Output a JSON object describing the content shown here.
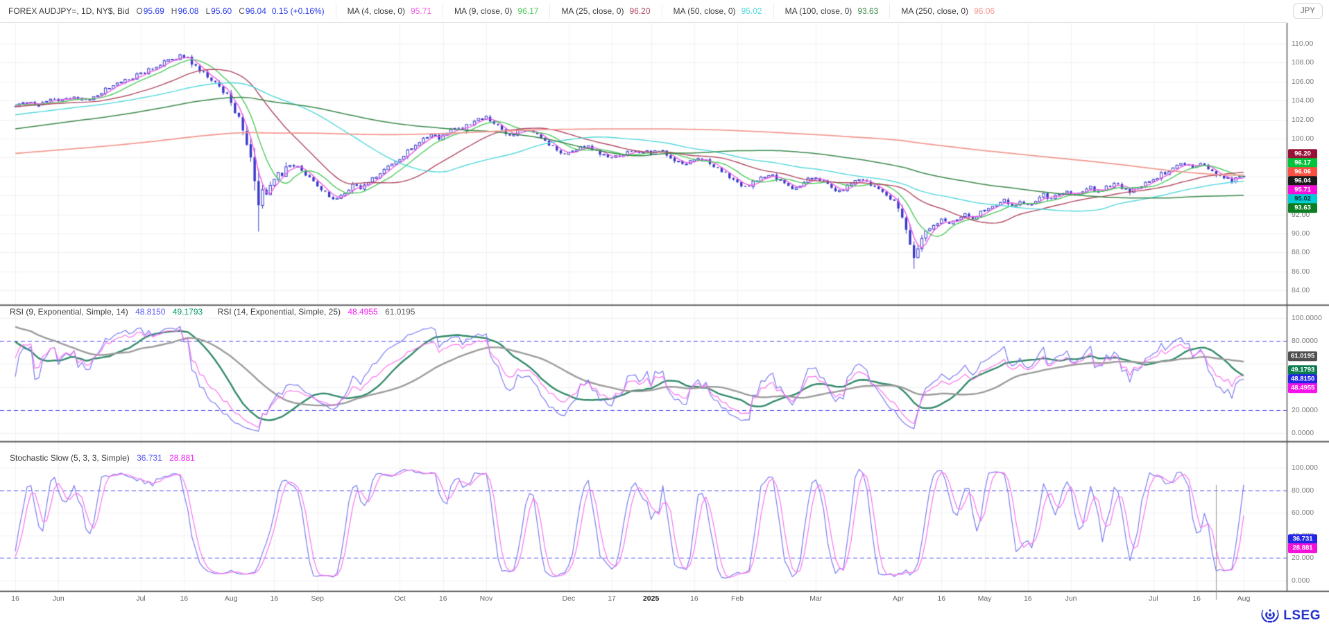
{
  "colors": {
    "value_blue": "#2b3cec",
    "text_dark": "#3c3c3c",
    "candle": "#3838cc",
    "grid_h": "#efefef",
    "grid_v": "#f2f2f2",
    "separator": "#555555",
    "dashed_level": "#4b4bf0",
    "axis_text": "#7b7b7b",
    "logo_blue": "#2531cc"
  },
  "header": {
    "symbol_info": "FOREX AUDJPY=, 1D, NY$, Bid",
    "ohlc": {
      "o_label": "O",
      "o": "95.69",
      "h_label": "H",
      "h": "96.08",
      "l_label": "L",
      "l": "95.60",
      "c_label": "C",
      "c": "96.04",
      "change": "0.15 (+0.16%)"
    },
    "currency_button": "JPY"
  },
  "price_panel": {
    "y_ticks": [
      {
        "text": "110.00",
        "value": 110
      },
      {
        "text": "108.00",
        "value": 108
      },
      {
        "text": "106.00",
        "value": 106
      },
      {
        "text": "104.00",
        "value": 104
      },
      {
        "text": "102.00",
        "value": 102
      },
      {
        "text": "100.00",
        "value": 100
      },
      {
        "text": "92.00",
        "value": 92
      },
      {
        "text": "90.00",
        "value": 90
      },
      {
        "text": "88.00",
        "value": 88
      },
      {
        "text": "86.00",
        "value": 86
      },
      {
        "text": "84.00",
        "value": 84
      }
    ],
    "badges": [
      {
        "text": "96.20",
        "value": 96.2,
        "bg": "#991137",
        "fg": "#ffffff"
      },
      {
        "text": "96.17",
        "value": 96.17,
        "bg": "#00c43a",
        "fg": "#ffffff"
      },
      {
        "text": "96.06",
        "value": 96.06,
        "bg": "#fb4f42",
        "fg": "#ffffff"
      },
      {
        "text": "96.04",
        "value": 96.04,
        "bg": "#1a1a1a",
        "fg": "#ffffff"
      },
      {
        "text": "95.71",
        "value": 95.71,
        "bg": "#f511d9",
        "fg": "#ffffff"
      },
      {
        "text": "95.02",
        "value": 95.02,
        "bg": "#00cdd4",
        "fg": "#003333"
      },
      {
        "text": "93.63",
        "value": 93.63,
        "bg": "#0b7d22",
        "fg": "#ffffff"
      }
    ]
  },
  "rsi_panel": {
    "title1": "RSI (9, Exponential, Simple, 14)",
    "value1": {
      "text": "48.8150",
      "color": "#5b5bf0"
    },
    "value2": {
      "text": "49.1793",
      "color": "#0a9a62"
    },
    "title2": "RSI (14, Exponential, Simple, 25)",
    "value3": {
      "text": "48.4955",
      "color": "#f31df3"
    },
    "value4": {
      "text": "61.0195",
      "color": "#5e5e5e"
    },
    "y_ticks": [
      {
        "text": "100.0000",
        "value": 100
      },
      {
        "text": "80.0000",
        "value": 80
      },
      {
        "text": "20.0000",
        "value": 20
      },
      {
        "text": "0.0000",
        "value": 0
      }
    ],
    "badges": [
      {
        "text": "61.0195",
        "value": 61.0195,
        "bg": "#4f4f4f",
        "fg": "#ffffff"
      },
      {
        "text": "49.1793",
        "value": 49.1793,
        "bg": "#0b7d4e",
        "fg": "#ffffff"
      },
      {
        "text": "48.8150",
        "value": 48.815,
        "bg": "#2525e8",
        "fg": "#ffffff"
      },
      {
        "text": "48.4955",
        "value": 48.4955,
        "bg": "#f511e9",
        "fg": "#ffffff"
      }
    ]
  },
  "stoch_panel": {
    "title": "Stochastic Slow (5, 3, 3, Simple)",
    "value1": {
      "text": "36.731",
      "color": "#5b5bf0"
    },
    "value2": {
      "text": "28.881",
      "color": "#f31df3"
    },
    "y_ticks": [
      {
        "text": "100.000",
        "value": 100
      },
      {
        "text": "80.000",
        "value": 80
      },
      {
        "text": "60.000",
        "value": 60
      },
      {
        "text": "40.000",
        "value": 40
      },
      {
        "text": "20.000",
        "value": 20
      },
      {
        "text": "0.000",
        "value": 0
      }
    ],
    "badges": [
      {
        "text": "36.731",
        "value": 36.731,
        "bg": "#2525e8",
        "fg": "#ffffff"
      },
      {
        "text": "28.881",
        "value": 28.881,
        "bg": "#f511d9",
        "fg": "#ffffff"
      }
    ]
  },
  "footer": {
    "logo_text": "LSEG"
  },
  "chart_data": {
    "type": "candlestick",
    "symbol": "FOREX AUDJPY=",
    "interval": "1D",
    "source": "NY$, Bid",
    "price_axis_range": [
      82.5,
      112.3
    ],
    "price_grid_levels": [
      84,
      86,
      88,
      90,
      92,
      94,
      96,
      98,
      100,
      102,
      104,
      106,
      108,
      110
    ],
    "overlays": [
      {
        "label": "MA (4, close, 0)",
        "window": 4,
        "value": "95.71",
        "color": "#ef5fe3",
        "width": 1.4
      },
      {
        "label": "MA (9, close, 0)",
        "window": 9,
        "value": "96.17",
        "color": "#4ecb5e",
        "width": 1.4
      },
      {
        "label": "MA (25, close, 0)",
        "window": 25,
        "value": "96.20",
        "color": "#b24a62",
        "width": 1.4
      },
      {
        "label": "MA (50, close, 0)",
        "window": 50,
        "value": "95.02",
        "color": "#52d8dc",
        "width": 1.4
      },
      {
        "label": "MA (100, close, 0)",
        "window": 100,
        "value": "93.63",
        "color": "#3c8a4c",
        "width": 1.5
      },
      {
        "label": "MA (250, close, 0)",
        "window": 250,
        "value": "96.06",
        "color": "#f49a92",
        "width": 1.8
      }
    ],
    "rsi": {
      "fast": {
        "period": 9,
        "smoothing": 14,
        "value": 48.815,
        "color": "#7b7bf2",
        "sma_value": 49.1793,
        "sma_color": "#318a68"
      },
      "slow": {
        "period": 14,
        "smoothing": 25,
        "value": 48.4955,
        "color": "#fb74ef",
        "sma_value": 61.0195,
        "sma_color": "#9c9c9c"
      },
      "levels": [
        80,
        20
      ],
      "range": [
        0,
        100
      ]
    },
    "stochastic": {
      "params": [
        5,
        3,
        3
      ],
      "k_value": 36.731,
      "k_color": "#7b7bf2",
      "d_value": 28.881,
      "d_color": "#fb74ef",
      "levels": [
        80,
        20
      ],
      "range": [
        0,
        100
      ]
    },
    "total_days": 314,
    "price_keyframes": [
      [
        0,
        103.4
      ],
      [
        3,
        103.8
      ],
      [
        6,
        103.5
      ],
      [
        9,
        104.3
      ],
      [
        12,
        104.0
      ],
      [
        15,
        104.5
      ],
      [
        18,
        103.9
      ],
      [
        21,
        104.7
      ],
      [
        24,
        105.4
      ],
      [
        27,
        106.0
      ],
      [
        30,
        106.4
      ],
      [
        33,
        107.0
      ],
      [
        36,
        107.6
      ],
      [
        39,
        108.2
      ],
      [
        42,
        108.7
      ],
      [
        44,
        108.4
      ],
      [
        46,
        107.6
      ],
      [
        48,
        106.9
      ],
      [
        50,
        106.2
      ],
      [
        52,
        105.4
      ],
      [
        54,
        104.6
      ],
      [
        55,
        103.9
      ],
      [
        56,
        102.8
      ],
      [
        57,
        102.2
      ],
      [
        58,
        101.0
      ],
      [
        59,
        99.4
      ],
      [
        60,
        97.8
      ],
      [
        61,
        95.4
      ],
      [
        62,
        93.0
      ],
      [
        63,
        94.6
      ],
      [
        64,
        94.0
      ],
      [
        65,
        95.2
      ],
      [
        66,
        95.9
      ],
      [
        67,
        96.4
      ],
      [
        68,
        96.0
      ],
      [
        69,
        96.8
      ],
      [
        70,
        97.3
      ],
      [
        72,
        96.9
      ],
      [
        74,
        96.2
      ],
      [
        76,
        95.3
      ],
      [
        78,
        94.5
      ],
      [
        80,
        93.9
      ],
      [
        82,
        93.6
      ],
      [
        84,
        94.4
      ],
      [
        86,
        95.1
      ],
      [
        88,
        94.6
      ],
      [
        90,
        95.4
      ],
      [
        92,
        96.1
      ],
      [
        94,
        96.8
      ],
      [
        96,
        97.4
      ],
      [
        98,
        98.0
      ],
      [
        100,
        98.7
      ],
      [
        102,
        99.3
      ],
      [
        104,
        99.9
      ],
      [
        106,
        100.4
      ],
      [
        108,
        100.0
      ],
      [
        110,
        100.7
      ],
      [
        112,
        101.2
      ],
      [
        114,
        101.0
      ],
      [
        116,
        101.5
      ],
      [
        118,
        101.9
      ],
      [
        120,
        102.2
      ],
      [
        122,
        101.6
      ],
      [
        124,
        100.9
      ],
      [
        126,
        100.3
      ],
      [
        128,
        100.7
      ],
      [
        130,
        101.0
      ],
      [
        132,
        100.5
      ],
      [
        134,
        100.0
      ],
      [
        136,
        99.4
      ],
      [
        138,
        98.8
      ],
      [
        140,
        98.2
      ],
      [
        142,
        98.6
      ],
      [
        144,
        99.1
      ],
      [
        146,
        99.4
      ],
      [
        148,
        98.7
      ],
      [
        150,
        98.2
      ],
      [
        152,
        97.9
      ],
      [
        154,
        98.3
      ],
      [
        156,
        98.6
      ],
      [
        158,
        98.5
      ],
      [
        160,
        98.6
      ],
      [
        162,
        98.4
      ],
      [
        164,
        98.8
      ],
      [
        166,
        98.3
      ],
      [
        168,
        97.7
      ],
      [
        170,
        97.2
      ],
      [
        172,
        97.6
      ],
      [
        174,
        98.1
      ],
      [
        176,
        97.6
      ],
      [
        178,
        97.0
      ],
      [
        180,
        96.5
      ],
      [
        182,
        96.0
      ],
      [
        184,
        95.4
      ],
      [
        186,
        94.8
      ],
      [
        188,
        95.3
      ],
      [
        190,
        95.9
      ],
      [
        192,
        96.3
      ],
      [
        194,
        95.8
      ],
      [
        196,
        95.2
      ],
      [
        198,
        94.7
      ],
      [
        200,
        95.2
      ],
      [
        202,
        95.7
      ],
      [
        204,
        96.0
      ],
      [
        206,
        95.5
      ],
      [
        208,
        94.9
      ],
      [
        210,
        94.4
      ],
      [
        212,
        94.9
      ],
      [
        214,
        95.4
      ],
      [
        216,
        95.7
      ],
      [
        218,
        95.2
      ],
      [
        220,
        94.6
      ],
      [
        222,
        94.0
      ],
      [
        224,
        93.4
      ],
      [
        225,
        92.6
      ],
      [
        226,
        91.5
      ],
      [
        227,
        90.2
      ],
      [
        228,
        88.9
      ],
      [
        229,
        87.6
      ],
      [
        230,
        88.4
      ],
      [
        231,
        89.3
      ],
      [
        232,
        90.1
      ],
      [
        234,
        90.8
      ],
      [
        236,
        91.4
      ],
      [
        238,
        90.9
      ],
      [
        240,
        91.5
      ],
      [
        242,
        92.0
      ],
      [
        244,
        91.6
      ],
      [
        246,
        92.2
      ],
      [
        248,
        92.7
      ],
      [
        250,
        93.1
      ],
      [
        252,
        93.4
      ],
      [
        254,
        92.9
      ],
      [
        256,
        93.3
      ],
      [
        258,
        93.0
      ],
      [
        260,
        93.5
      ],
      [
        262,
        94.0
      ],
      [
        264,
        93.6
      ],
      [
        266,
        94.1
      ],
      [
        268,
        94.4
      ],
      [
        270,
        94.0
      ],
      [
        272,
        94.5
      ],
      [
        274,
        94.8
      ],
      [
        276,
        94.4
      ],
      [
        278,
        94.9
      ],
      [
        280,
        95.2
      ],
      [
        282,
        94.8
      ],
      [
        284,
        94.4
      ],
      [
        286,
        94.9
      ],
      [
        288,
        95.3
      ],
      [
        290,
        95.7
      ],
      [
        292,
        96.2
      ],
      [
        294,
        96.6
      ],
      [
        296,
        97.0
      ],
      [
        298,
        97.3
      ],
      [
        300,
        96.9
      ],
      [
        302,
        97.2
      ],
      [
        304,
        96.8
      ],
      [
        306,
        96.3
      ],
      [
        308,
        95.9
      ],
      [
        310,
        95.6
      ],
      [
        312,
        95.9
      ],
      [
        313,
        96.04
      ]
    ],
    "prehistory_keyframes": [
      [
        -250,
        95.5
      ],
      [
        -200,
        96.5
      ],
      [
        -150,
        97.2
      ],
      [
        -120,
        97.0
      ],
      [
        -90,
        98.5
      ],
      [
        -60,
        100.5
      ],
      [
        -30,
        102.0
      ],
      [
        -10,
        103.8
      ]
    ],
    "wick_lows": [
      [
        62,
        90.2
      ],
      [
        229,
        86.3
      ]
    ],
    "wick_highs": [
      [
        42,
        108.95
      ]
    ],
    "time_axis_labels": [
      {
        "text": "16",
        "day": 0
      },
      {
        "text": "Jun",
        "day": 11
      },
      {
        "text": "Jul",
        "day": 32
      },
      {
        "text": "16",
        "day": 43
      },
      {
        "text": "Aug",
        "day": 55
      },
      {
        "text": "16",
        "day": 66
      },
      {
        "text": "Sep",
        "day": 77
      },
      {
        "text": "Oct",
        "day": 98
      },
      {
        "text": "16",
        "day": 109
      },
      {
        "text": "Nov",
        "day": 120
      },
      {
        "text": "Dec",
        "day": 141
      },
      {
        "text": "17",
        "day": 152
      },
      {
        "text": "2025",
        "day": 162,
        "bold": true
      },
      {
        "text": "16",
        "day": 173
      },
      {
        "text": "Feb",
        "day": 184
      },
      {
        "text": "Mar",
        "day": 204
      },
      {
        "text": "Apr",
        "day": 225
      },
      {
        "text": "16",
        "day": 236
      },
      {
        "text": "May",
        "day": 247
      },
      {
        "text": "16",
        "day": 258
      },
      {
        "text": "Jun",
        "day": 269
      },
      {
        "text": "Jul",
        "day": 290
      },
      {
        "text": "16",
        "day": 301
      },
      {
        "text": "Aug",
        "day": 313
      }
    ]
  }
}
